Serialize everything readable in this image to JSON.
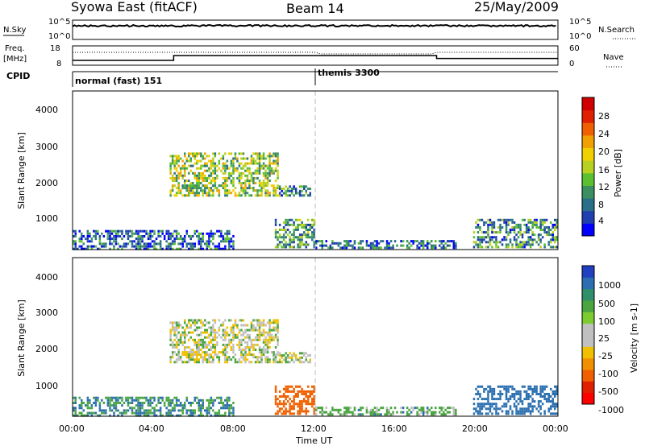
{
  "header": {
    "title_left": "Syowa East (fitACF)",
    "title_center": "Beam 14",
    "title_right": "25/May/2009"
  },
  "top_panels": {
    "nsky_label": "N.Sky",
    "nsky_top_tick": "10^5",
    "nsky_bottom_tick": "10^0",
    "nsearch_label": "N.Search",
    "nsearch_top_tick": "10^5",
    "nsearch_bottom_tick": "10^0",
    "freq_label_1": "Freq.",
    "freq_label_2": "[MHz]",
    "freq_top_tick": "18",
    "freq_bottom_tick": "8",
    "nave_label": "Nave",
    "nave_top_tick": "60",
    "nave_bottom_tick": "0",
    "cpid_label": "CPID",
    "cpid_segments": [
      {
        "text": "normal (fast) 151",
        "start_hour": 0
      },
      {
        "text": "themis 3300",
        "start_hour": 12
      }
    ],
    "freq_steps": [
      {
        "from_hour": 0,
        "to_hour": 5,
        "value": 10.5
      },
      {
        "from_hour": 5,
        "to_hour": 18,
        "value": 13
      },
      {
        "from_hour": 18,
        "to_hour": 24,
        "value": 11.5
      }
    ]
  },
  "chart_data": [
    {
      "type": "heatmap",
      "title": "",
      "ylabel": "Slant Range [km]",
      "xlabel": "",
      "xlim": [
        0,
        24
      ],
      "ylim": [
        200,
        4500
      ],
      "y_ticks": [
        "1000",
        "2000",
        "3000",
        "4000"
      ],
      "colorbar_label": "Power [dB]",
      "colorbar_ticks": [
        "4",
        "8",
        "12",
        "16",
        "20",
        "24",
        "28"
      ],
      "colorbar_range": [
        0,
        30
      ],
      "colorbar_colors": [
        "#0000ff",
        "#1f3fb0",
        "#2a6f8a",
        "#3a9060",
        "#5bc030",
        "#b8d020",
        "#f0d000",
        "#f0a000",
        "#f06000",
        "#e02000",
        "#d00000"
      ],
      "echo_regions": [
        {
          "name": "main",
          "t0": 4.8,
          "t1": 10.2,
          "r0": 1700,
          "r1": 2900,
          "level": 14
        },
        {
          "name": "tail",
          "t0": 10.2,
          "t1": 11.8,
          "r0": 1700,
          "r1": 2000,
          "level": 8
        },
        {
          "name": "near",
          "t0": 10.0,
          "t1": 12.0,
          "r0": 300,
          "r1": 1100,
          "level": 10
        },
        {
          "name": "low",
          "t0": 12.0,
          "t1": 19.0,
          "r0": 280,
          "r1": 520,
          "level": 6
        },
        {
          "name": "late",
          "t0": 19.8,
          "t1": 24.0,
          "r0": 300,
          "r1": 1100,
          "level": 9
        },
        {
          "name": "ground",
          "t0": 0.0,
          "t1": 8.0,
          "r0": 250,
          "r1": 800,
          "level": 6
        }
      ]
    },
    {
      "type": "heatmap",
      "title": "",
      "ylabel": "Slant Range [km]",
      "xlabel": "Time UT",
      "xlim": [
        0,
        24
      ],
      "ylim": [
        200,
        4500
      ],
      "x_ticks": [
        "00:00",
        "04:00",
        "08:00",
        "12:00",
        "16:00",
        "20:00",
        "00:00"
      ],
      "y_ticks": [
        "1000",
        "2000",
        "3000",
        "4000"
      ],
      "colorbar_label": "Velocity [m s-1]",
      "colorbar_ticks": [
        "1000",
        "500",
        "100",
        "25",
        "-25",
        "-100",
        "-500",
        "-1000"
      ],
      "colorbar_range": [
        -1000,
        1000
      ],
      "colorbar_colors": [
        "#2040c0",
        "#2b6fb0",
        "#2f8f6a",
        "#4aa540",
        "#7ccc30",
        "#c0c0c0",
        "#c0c0c0",
        "#f0c000",
        "#f09000",
        "#f06000",
        "#e02000",
        "#ff0000"
      ],
      "echo_regions": [
        {
          "name": "main",
          "t0": 4.8,
          "t1": 10.2,
          "r0": 1700,
          "r1": 2900,
          "level": 0
        },
        {
          "name": "tail",
          "t0": 10.2,
          "t1": 11.8,
          "r0": 1700,
          "r1": 2000,
          "level": 0
        },
        {
          "name": "near",
          "t0": 10.0,
          "t1": 12.0,
          "r0": 300,
          "r1": 1100,
          "level": -200
        },
        {
          "name": "low",
          "t0": 12.0,
          "t1": 19.0,
          "r0": 280,
          "r1": 520,
          "level": 50
        },
        {
          "name": "late",
          "t0": 19.8,
          "t1": 24.0,
          "r0": 300,
          "r1": 1100,
          "level": 300
        },
        {
          "name": "ground",
          "t0": 0.0,
          "t1": 8.0,
          "r0": 250,
          "r1": 800,
          "level": 100
        }
      ]
    }
  ],
  "colors": {
    "ground_scatter": "#c0c0c0",
    "axis": "#000000",
    "dashed_marker": "#bbbbbb"
  }
}
